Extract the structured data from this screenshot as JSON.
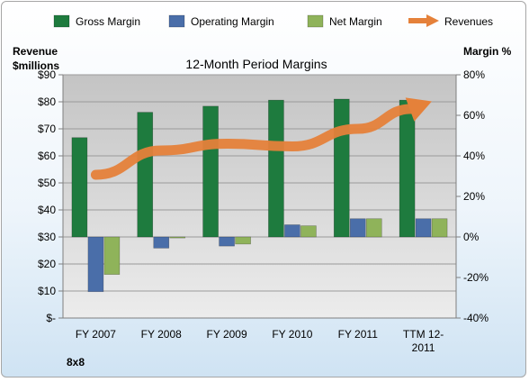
{
  "chart_data": {
    "type": "bar",
    "title": "12-Month Period Margins",
    "company": "8x8",
    "ylabel_left": [
      "Revenue",
      "$millions"
    ],
    "ylabel_right": "Margin %",
    "left_axis": {
      "min": 0,
      "max": 90,
      "ticks": [
        "$-",
        "$10",
        "$20",
        "$30",
        "$40",
        "$50",
        "$60",
        "$70",
        "$80",
        "$90"
      ]
    },
    "right_axis": {
      "min": -40,
      "max": 80,
      "ticks": [
        "-40%",
        "-20%",
        "0%",
        "20%",
        "40%",
        "60%",
        "80%"
      ]
    },
    "categories": [
      "FY 2007",
      "FY 2008",
      "FY 2009",
      "FY 2010",
      "FY 2011",
      "TTM 12-2011"
    ],
    "series": [
      {
        "name": "Gross Margin",
        "kind": "bar",
        "axis": "right",
        "color": "#1e7b3e",
        "values": [
          49,
          61.5,
          64.5,
          67.5,
          68,
          67.5
        ]
      },
      {
        "name": "Operating Margin",
        "kind": "bar",
        "axis": "right",
        "color": "#4a6ea9",
        "values": [
          -27,
          -5.5,
          -4.5,
          6,
          9,
          9
        ]
      },
      {
        "name": "Net Margin",
        "kind": "bar",
        "axis": "right",
        "color": "#8fb35a",
        "values": [
          -18.5,
          -0.5,
          -3.5,
          5.5,
          9,
          9
        ]
      },
      {
        "name": "Revenues",
        "kind": "line",
        "axis": "left",
        "color": "#e5813a",
        "values": [
          53,
          62,
          64.5,
          63.5,
          70,
          79
        ]
      }
    ],
    "legend_position": "top",
    "grid": true
  }
}
